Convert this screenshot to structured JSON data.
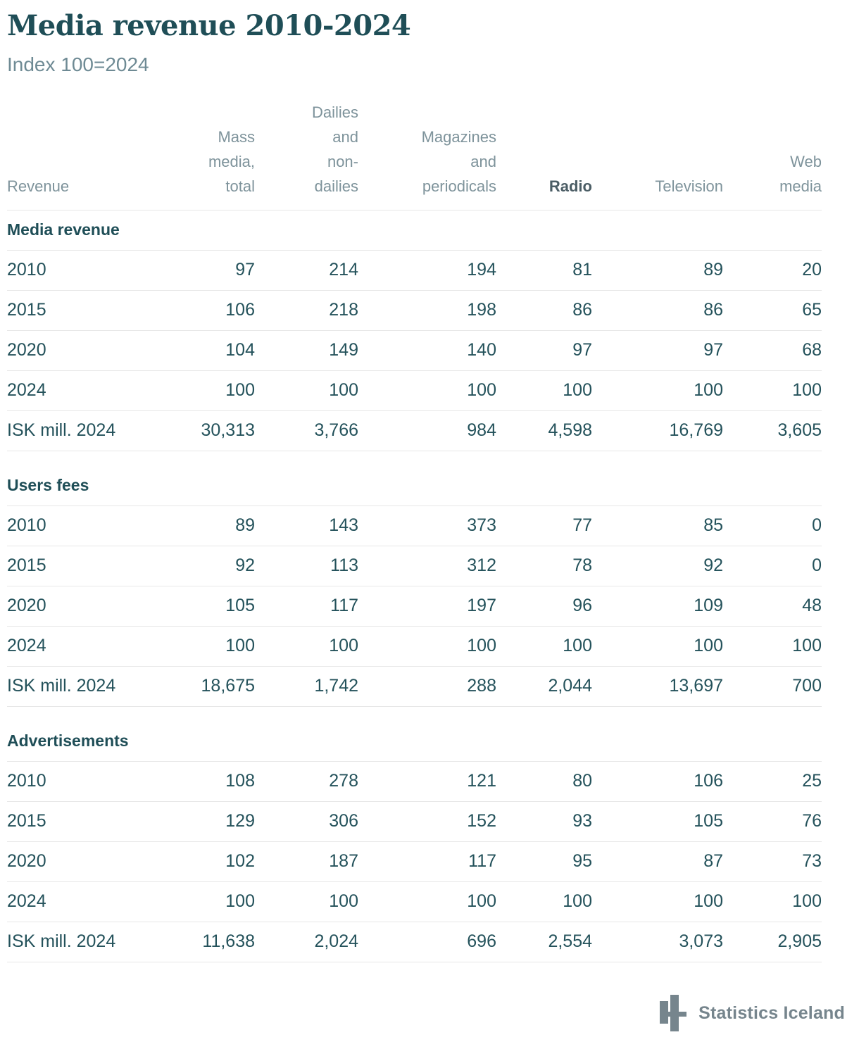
{
  "chart_data": {
    "type": "table",
    "title": "Media revenue 2010-2024",
    "subtitle": "Index 100=2024",
    "row_label_header": "Revenue",
    "columns": [
      "Mass media, total",
      "Dailies and non-dailies",
      "Magazines and periodicals",
      "Radio",
      "Television",
      "Web media"
    ],
    "column_header_lines": [
      "Mass\nmedia,\ntotal",
      "Dailies\nand\nnon-\ndailies",
      "Magazines\nand\nperiodicals",
      "Radio",
      "Television",
      "Web\nmedia"
    ],
    "emphasized_column": "Radio",
    "sections": [
      {
        "title": "Media revenue",
        "rows": [
          {
            "label": "2010",
            "values": [
              "97",
              "214",
              "194",
              "81",
              "89",
              "20"
            ]
          },
          {
            "label": "2015",
            "values": [
              "106",
              "218",
              "198",
              "86",
              "86",
              "65"
            ]
          },
          {
            "label": "2020",
            "values": [
              "104",
              "149",
              "140",
              "97",
              "97",
              "68"
            ]
          },
          {
            "label": "2024",
            "values": [
              "100",
              "100",
              "100",
              "100",
              "100",
              "100"
            ]
          },
          {
            "label": "ISK mill. 2024",
            "values": [
              "30,313",
              "3,766",
              "984",
              "4,598",
              "16,769",
              "3,605"
            ]
          }
        ]
      },
      {
        "title": "Users fees",
        "rows": [
          {
            "label": "2010",
            "values": [
              "89",
              "143",
              "373",
              "77",
              "85",
              "0"
            ]
          },
          {
            "label": "2015",
            "values": [
              "92",
              "113",
              "312",
              "78",
              "92",
              "0"
            ]
          },
          {
            "label": "2020",
            "values": [
              "105",
              "117",
              "197",
              "96",
              "109",
              "48"
            ]
          },
          {
            "label": "2024",
            "values": [
              "100",
              "100",
              "100",
              "100",
              "100",
              "100"
            ]
          },
          {
            "label": "ISK mill. 2024",
            "values": [
              "18,675",
              "1,742",
              "288",
              "2,044",
              "13,697",
              "700"
            ]
          }
        ]
      },
      {
        "title": "Advertisements",
        "rows": [
          {
            "label": "2010",
            "values": [
              "108",
              "278",
              "121",
              "80",
              "106",
              "25"
            ]
          },
          {
            "label": "2015",
            "values": [
              "129",
              "306",
              "152",
              "93",
              "105",
              "76"
            ]
          },
          {
            "label": "2020",
            "values": [
              "102",
              "187",
              "117",
              "95",
              "87",
              "73"
            ]
          },
          {
            "label": "2024",
            "values": [
              "100",
              "100",
              "100",
              "100",
              "100",
              "100"
            ]
          },
          {
            "label": "ISK mill. 2024",
            "values": [
              "11,638",
              "2,024",
              "696",
              "2,554",
              "3,073",
              "2,905"
            ]
          }
        ]
      }
    ]
  },
  "footer": {
    "logo_icon": "statistics-iceland-logo",
    "logo_text": "Statistics Iceland"
  },
  "colors": {
    "title_text": "#1f4e57",
    "data_text": "#24525b",
    "column_header_text": "#7e939b",
    "emphasized_header_text": "#4b5d65",
    "subtitle_text": "#6e8a94",
    "logo": "#76858d",
    "row_border": "#e7e7e7",
    "background": "#ffffff"
  }
}
